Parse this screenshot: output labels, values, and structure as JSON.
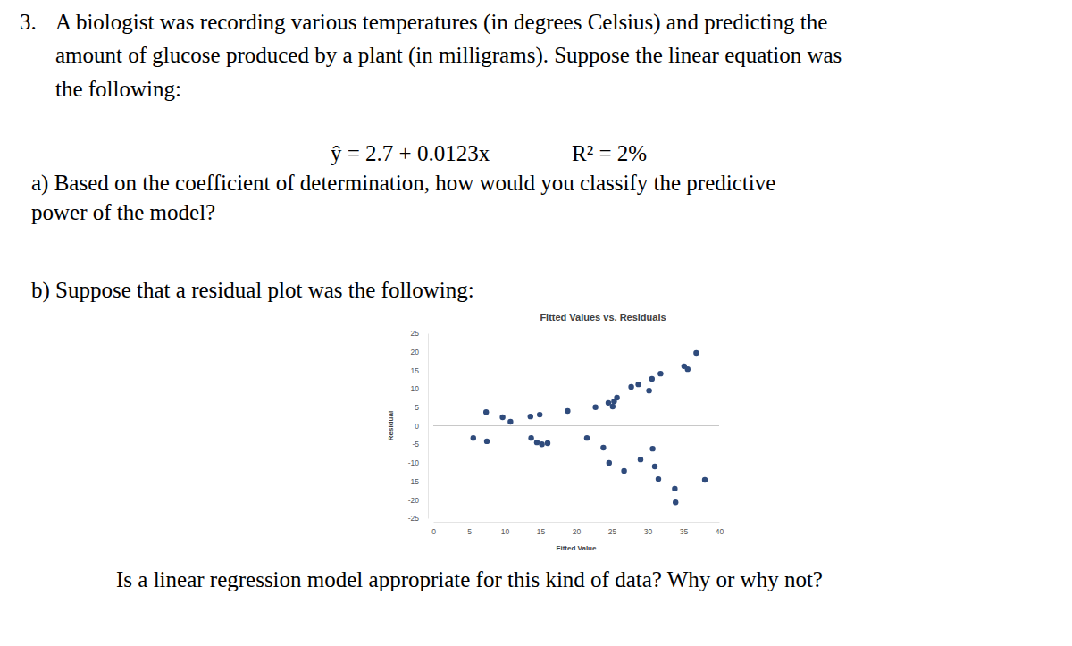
{
  "question": {
    "number": "3.",
    "intro": [
      "A biologist was recording various temperatures (in degrees Celsius) and predicting the",
      "amount of glucose produced by a plant (in milligrams). Suppose the linear equation was",
      "the following:"
    ],
    "equation": "ŷ = 2.7 + 0.0123x",
    "r_squared": "R² = 2%",
    "part_a": [
      "a) Based on the coefficient of determination, how would you classify the predictive",
      "power of the model?"
    ],
    "part_b": "b) Suppose that a residual plot was the following:",
    "closing": "Is a linear regression model appropriate for this kind of data? Why or why not?"
  },
  "chart_data": {
    "type": "scatter",
    "title": "Fitted Values vs. Residuals",
    "x_label": "Fitted Value",
    "y_label": "Residual",
    "x": [
      5.6,
      7.4,
      7.5,
      9.7,
      10.8,
      13.6,
      13.7,
      14.5,
      14.9,
      15.2,
      16.0,
      18.8,
      21.5,
      22.7,
      23.8,
      24.5,
      24.6,
      25.1,
      25.3,
      25.7,
      26.7,
      27.7,
      28.7,
      29.0,
      30.2,
      30.6,
      30.7,
      31.0,
      31.5,
      31.8,
      33.8,
      33.9,
      35.1,
      35.6,
      36.8,
      38.0
    ],
    "values": [
      -3.3,
      3.7,
      -4.2,
      2.3,
      1.1,
      2.5,
      -3.3,
      -4.5,
      3.0,
      -5.0,
      -4.7,
      4.0,
      -3.3,
      5.0,
      -5.9,
      6.2,
      -10.0,
      5.2,
      6.6,
      7.6,
      -12.2,
      10.5,
      11.2,
      -9.1,
      9.5,
      12.7,
      -6.2,
      -11.0,
      -14.4,
      14.1,
      -17.0,
      -20.7,
      16.1,
      15.3,
      19.7,
      -14.6
    ],
    "color": "#2f4b7c",
    "marker": "circle",
    "xlim": [
      0,
      40
    ],
    "xticks": [
      0,
      5,
      10,
      15,
      20,
      25,
      30,
      35,
      40
    ],
    "ylim": [
      -25,
      25
    ],
    "yticks": [
      -25,
      -20,
      -15,
      -10,
      -5,
      0,
      5,
      10,
      15,
      20,
      25
    ]
  }
}
